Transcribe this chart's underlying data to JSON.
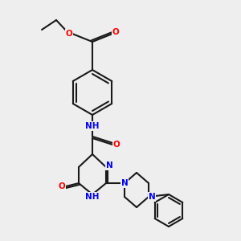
{
  "background_color": "#eeeeee",
  "bond_color": "#1a1a1a",
  "bond_width": 1.5,
  "atom_colors": {
    "C": "#1a1a1a",
    "N": "#0000ff",
    "O": "#ff0000",
    "H": "#2a9d8f"
  },
  "font_size": 7.5
}
